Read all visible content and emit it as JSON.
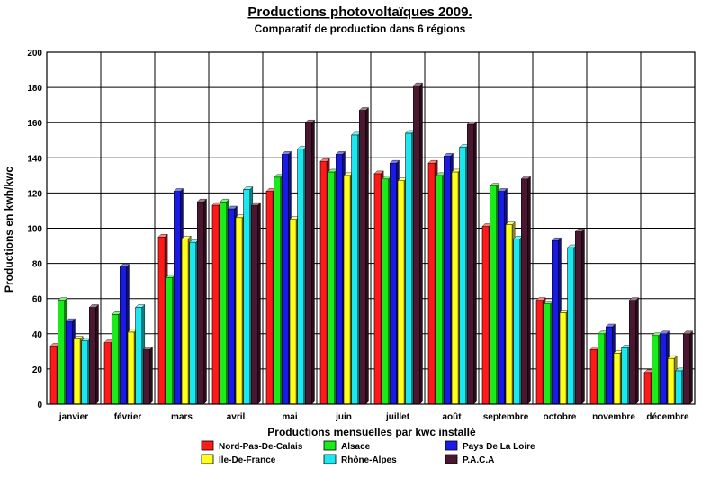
{
  "chart_data": {
    "type": "bar",
    "title": "Productions photovoltaïques 2009.",
    "subtitle": "Comparatif de production dans 6 régions",
    "xlabel": "Productions mensuelles par kwc installé",
    "ylabel": "Productions en kwh/kwc",
    "ylim": [
      0,
      200
    ],
    "yticks": [
      0,
      20,
      40,
      60,
      80,
      100,
      120,
      140,
      160,
      180,
      200
    ],
    "grid": true,
    "legend_position": "bottom",
    "categories": [
      "janvier",
      "février",
      "mars",
      "avril",
      "mai",
      "juin",
      "juillet",
      "août",
      "septembre",
      "octobre",
      "novembre",
      "décembre"
    ],
    "series": [
      {
        "name": "Nord-Pas-De-Calais",
        "color": "#ff1a1a",
        "values": [
          33,
          35,
          95,
          113,
          121,
          138,
          131,
          137,
          101,
          59,
          31,
          18
        ]
      },
      {
        "name": "Alsace",
        "color": "#1aeb1a",
        "values": [
          59,
          51,
          72,
          115,
          129,
          132,
          128,
          130,
          124,
          57,
          40,
          39
        ]
      },
      {
        "name": "Pays De La Loire",
        "color": "#1a1ae6",
        "values": [
          47,
          78,
          121,
          111,
          142,
          142,
          137,
          141,
          121,
          93,
          44,
          40
        ]
      },
      {
        "name": "Ile-De-France",
        "color": "#ffff1a",
        "values": [
          37,
          41,
          94,
          106,
          105,
          130,
          127,
          132,
          102,
          52,
          29,
          26
        ]
      },
      {
        "name": "Rhône-Alpes",
        "color": "#1ae8f0",
        "values": [
          36,
          55,
          92,
          122,
          145,
          153,
          154,
          146,
          94,
          89,
          32,
          19
        ]
      },
      {
        "name": "P.A.C.A",
        "color": "#4a1630",
        "values": [
          55,
          31,
          115,
          113,
          160,
          167,
          181,
          159,
          128,
          98,
          59,
          40
        ]
      }
    ]
  }
}
